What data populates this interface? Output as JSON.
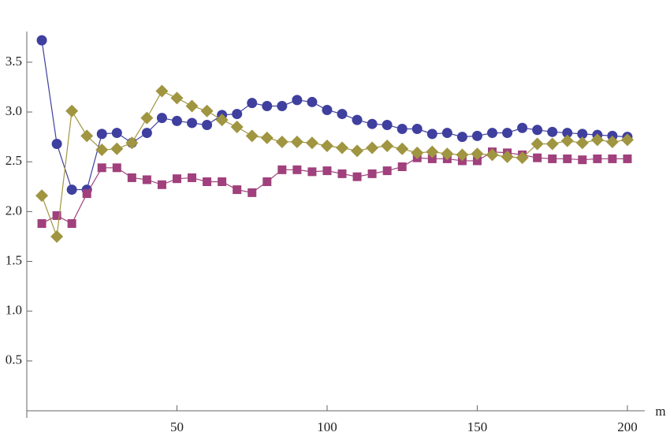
{
  "chart_data": {
    "type": "line",
    "x_label": "m",
    "x": [
      5,
      10,
      15,
      20,
      25,
      30,
      35,
      40,
      45,
      50,
      55,
      60,
      65,
      70,
      75,
      80,
      85,
      90,
      95,
      100,
      105,
      110,
      115,
      120,
      125,
      130,
      135,
      140,
      145,
      150,
      155,
      160,
      165,
      170,
      175,
      180,
      185,
      190,
      195,
      200
    ],
    "series": [
      {
        "color": "#3f3f9f",
        "marker": "circle",
        "values": [
          3.72,
          2.68,
          2.22,
          2.22,
          2.78,
          2.79,
          2.69,
          2.79,
          2.94,
          2.91,
          2.89,
          2.87,
          2.97,
          2.98,
          3.09,
          3.06,
          3.06,
          3.12,
          3.1,
          3.02,
          2.98,
          2.92,
          2.88,
          2.87,
          2.83,
          2.83,
          2.78,
          2.79,
          2.75,
          2.76,
          2.79,
          2.79,
          2.84,
          2.82,
          2.8,
          2.79,
          2.78,
          2.77,
          2.76,
          2.75
        ]
      },
      {
        "color": "#a0407c",
        "marker": "square",
        "values": [
          1.88,
          1.96,
          1.88,
          2.18,
          2.44,
          2.44,
          2.34,
          2.32,
          2.27,
          2.33,
          2.34,
          2.3,
          2.3,
          2.22,
          2.19,
          2.3,
          2.42,
          2.42,
          2.4,
          2.41,
          2.38,
          2.35,
          2.38,
          2.41,
          2.45,
          2.54,
          2.53,
          2.53,
          2.51,
          2.51,
          2.6,
          2.59,
          2.57,
          2.54,
          2.53,
          2.53,
          2.52,
          2.53,
          2.53,
          2.53
        ]
      },
      {
        "color": "#a09540",
        "marker": "diamond",
        "values": [
          2.16,
          1.75,
          3.01,
          2.76,
          2.62,
          2.63,
          2.69,
          2.94,
          3.21,
          3.14,
          3.06,
          3.01,
          2.92,
          2.85,
          2.76,
          2.74,
          2.7,
          2.7,
          2.69,
          2.66,
          2.64,
          2.61,
          2.64,
          2.66,
          2.63,
          2.59,
          2.6,
          2.58,
          2.57,
          2.58,
          2.57,
          2.55,
          2.54,
          2.68,
          2.68,
          2.71,
          2.69,
          2.72,
          2.7,
          2.72
        ]
      }
    ],
    "xlim": [
      0,
      205
    ],
    "ylim": [
      0,
      3.8
    ],
    "xticks": [
      50,
      100,
      150,
      200
    ],
    "yticks": [
      0.5,
      {
        "value": 1.0,
        "label": "1.0"
      },
      1.5,
      {
        "value": 2.0,
        "label": "2.0"
      },
      2.5,
      {
        "value": 3.0,
        "label": "3.0"
      },
      3.5
    ]
  }
}
